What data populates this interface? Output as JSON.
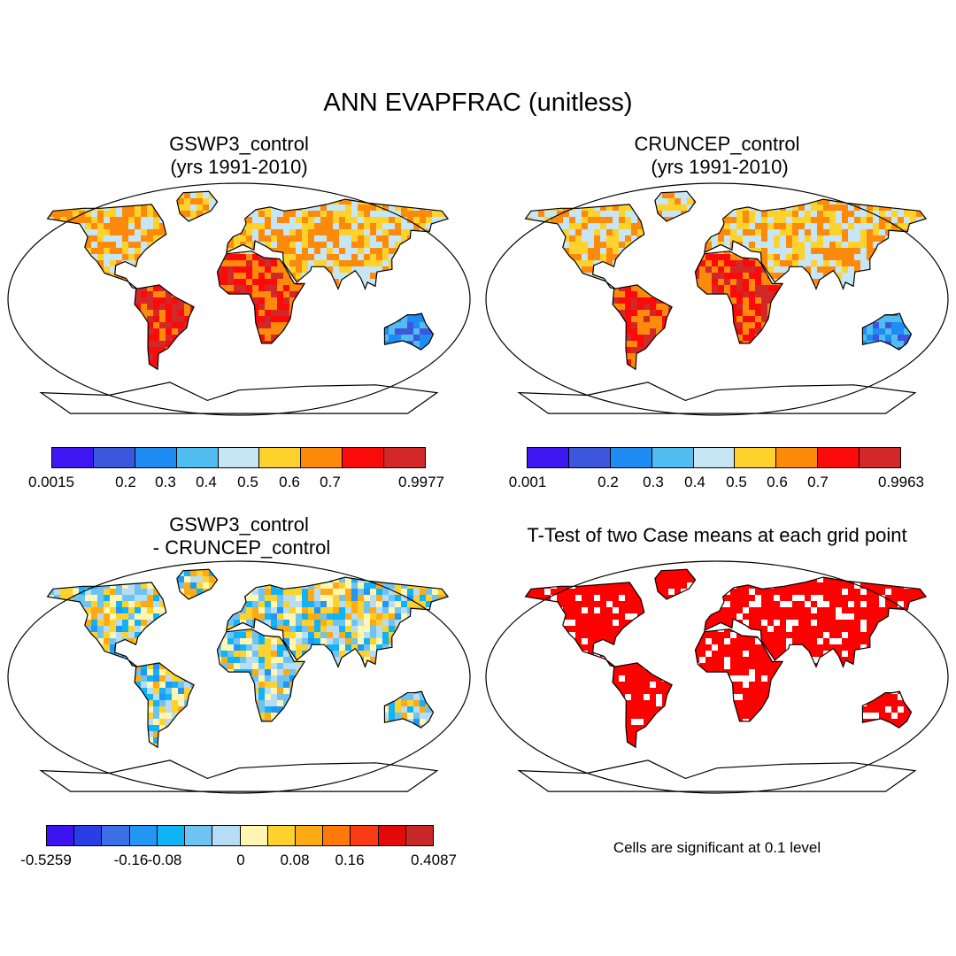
{
  "title": "ANN EVAPFRAC (unitless)",
  "panels": [
    {
      "id": "gswp3",
      "title_lines": [
        "GSWP3_control",
        "(yrs 1991-2010)"
      ],
      "colorbar": {
        "colors": [
          "#3c17f2",
          "#3c56dc",
          "#1e8cf2",
          "#50bcf0",
          "#c6e6f6",
          "#fdd22c",
          "#fd8a0a",
          "#fb0a0a",
          "#d22828"
        ],
        "labels": [
          "0.0015",
          "0.2",
          "0.3",
          "0.4",
          "0.5",
          "0.6",
          "0.7",
          "0.9977"
        ]
      }
    },
    {
      "id": "cruncep",
      "title_lines": [
        "CRUNCEP_control",
        " (yrs 1991-2010)"
      ],
      "colorbar": {
        "colors": [
          "#3c17f2",
          "#3c56dc",
          "#1e8cf2",
          "#50bcf0",
          "#c6e6f6",
          "#fdd22c",
          "#fd8a0a",
          "#fb0a0a",
          "#d22828"
        ],
        "labels": [
          "0.001",
          "0.2",
          "0.3",
          "0.4",
          "0.5",
          "0.6",
          "0.7",
          "0.9963"
        ]
      }
    },
    {
      "id": "diff",
      "title_lines": [
        "GSWP3_control",
        " - CRUNCEP_control"
      ],
      "colorbar": {
        "colors": [
          "#3c14f0",
          "#2a3ee6",
          "#3c6ee6",
          "#2196f3",
          "#10b4f6",
          "#6ec3f0",
          "#b6dcf6",
          "#fff6b4",
          "#fdd22c",
          "#fdaa14",
          "#fd7a0a",
          "#fa3c14",
          "#e40a0a",
          "#c82828"
        ],
        "labels": [
          "-0.5259",
          "-0.16",
          "-0.08",
          "0",
          "0.08",
          "0.16",
          "0.4087"
        ]
      }
    },
    {
      "id": "ttest",
      "title_lines": [
        "T-Test of two Case means at each grid point"
      ],
      "note": "Cells are significant at 0.1 level",
      "sig_color": "#ff0000"
    }
  ]
}
